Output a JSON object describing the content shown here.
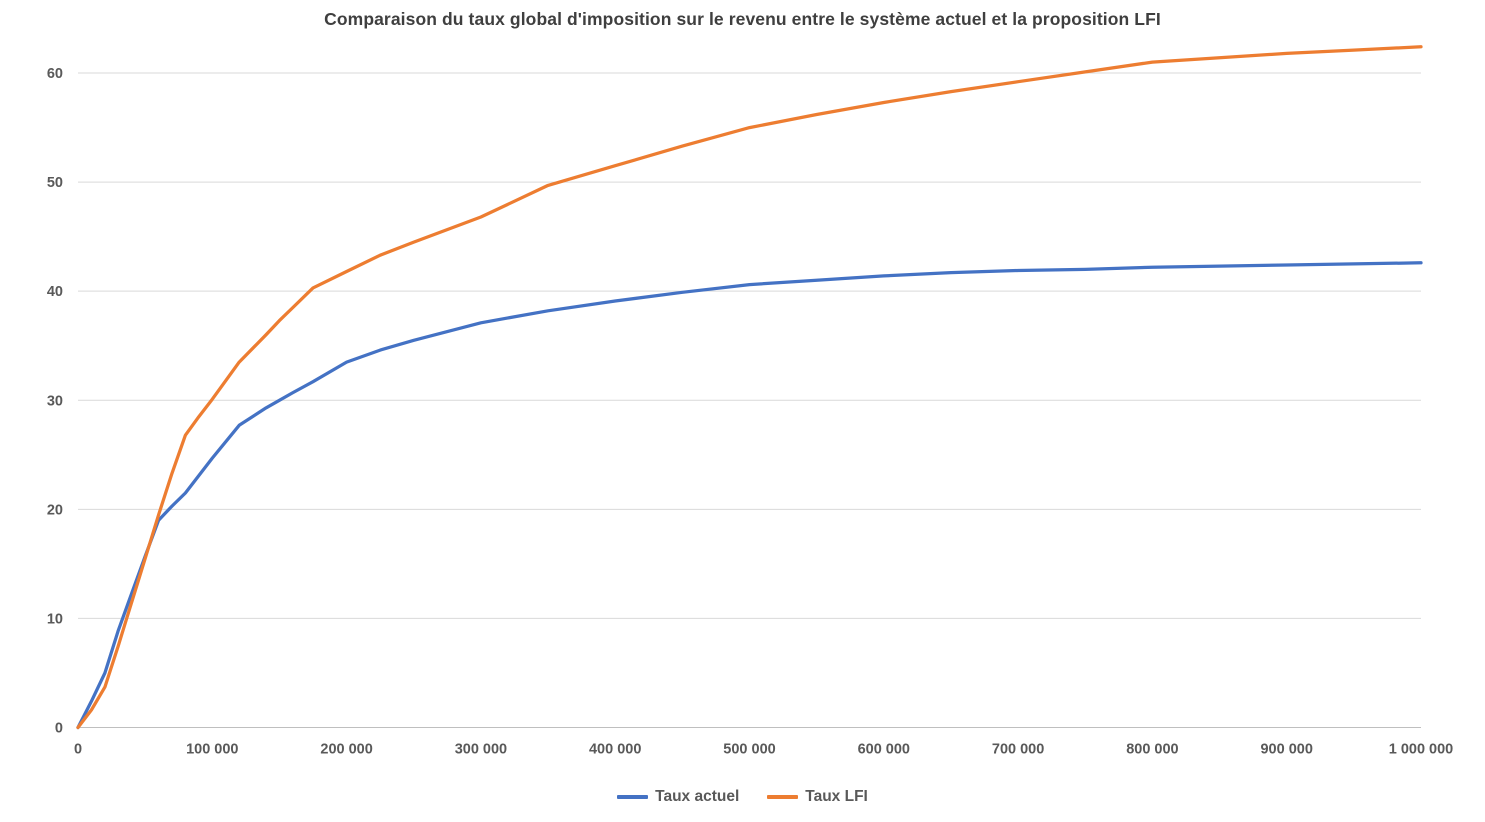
{
  "chart_data": {
    "type": "line",
    "title": "Comparaison du taux global d'imposition sur le revenu entre le système actuel et la proposition LFI",
    "xlabel": "",
    "ylabel": "",
    "xlim": [
      0,
      1000000
    ],
    "ylim": [
      0,
      63
    ],
    "grid": "horizontal",
    "legend_position": "bottom",
    "y_ticks": [
      0,
      10,
      20,
      30,
      40,
      50,
      60
    ],
    "x_ticks": {
      "values": [
        0,
        100000,
        200000,
        300000,
        400000,
        500000,
        600000,
        700000,
        800000,
        900000,
        1000000
      ],
      "labels": [
        "0",
        "100 000",
        "200 000",
        "300 000",
        "400 000",
        "500 000",
        "600 000",
        "700 000",
        "800 000",
        "900 000",
        "1 000 000"
      ]
    },
    "x": [
      0,
      10000,
      20000,
      30000,
      40000,
      50000,
      60000,
      70000,
      80000,
      90000,
      100000,
      120000,
      140000,
      150000,
      160000,
      175000,
      200000,
      225000,
      250000,
      300000,
      350000,
      400000,
      450000,
      500000,
      550000,
      600000,
      650000,
      700000,
      750000,
      800000,
      850000,
      900000,
      950000,
      1000000
    ],
    "series": [
      {
        "name": "Taux actuel",
        "color": "#4472C4",
        "values": [
          0,
          2.4,
          5.0,
          8.9,
          12.3,
          15.7,
          19.0,
          20.3,
          21.5,
          23.1,
          24.7,
          27.7,
          29.3,
          30.0,
          30.7,
          31.7,
          33.5,
          34.6,
          35.5,
          37.1,
          38.2,
          39.1,
          39.9,
          40.6,
          41.0,
          41.4,
          41.7,
          41.9,
          42.0,
          42.2,
          42.3,
          42.4,
          42.5,
          42.6
        ]
      },
      {
        "name": "Taux LFI",
        "color": "#ED7D31",
        "values": [
          0,
          1.6,
          3.7,
          7.5,
          11.5,
          15.5,
          19.5,
          23.3,
          26.8,
          28.5,
          30.1,
          33.5,
          36.0,
          37.3,
          38.5,
          40.3,
          41.8,
          43.3,
          44.5,
          46.8,
          49.7,
          51.5,
          53.3,
          55.0,
          56.2,
          57.3,
          58.3,
          59.2,
          60.1,
          61.0,
          61.4,
          61.8,
          62.1,
          62.4
        ]
      }
    ]
  },
  "colors": {
    "gridline": "#D9D9D9",
    "axis_line": "#BFBFBF",
    "tick_label": "#595959",
    "title": "#3F3F3F"
  }
}
